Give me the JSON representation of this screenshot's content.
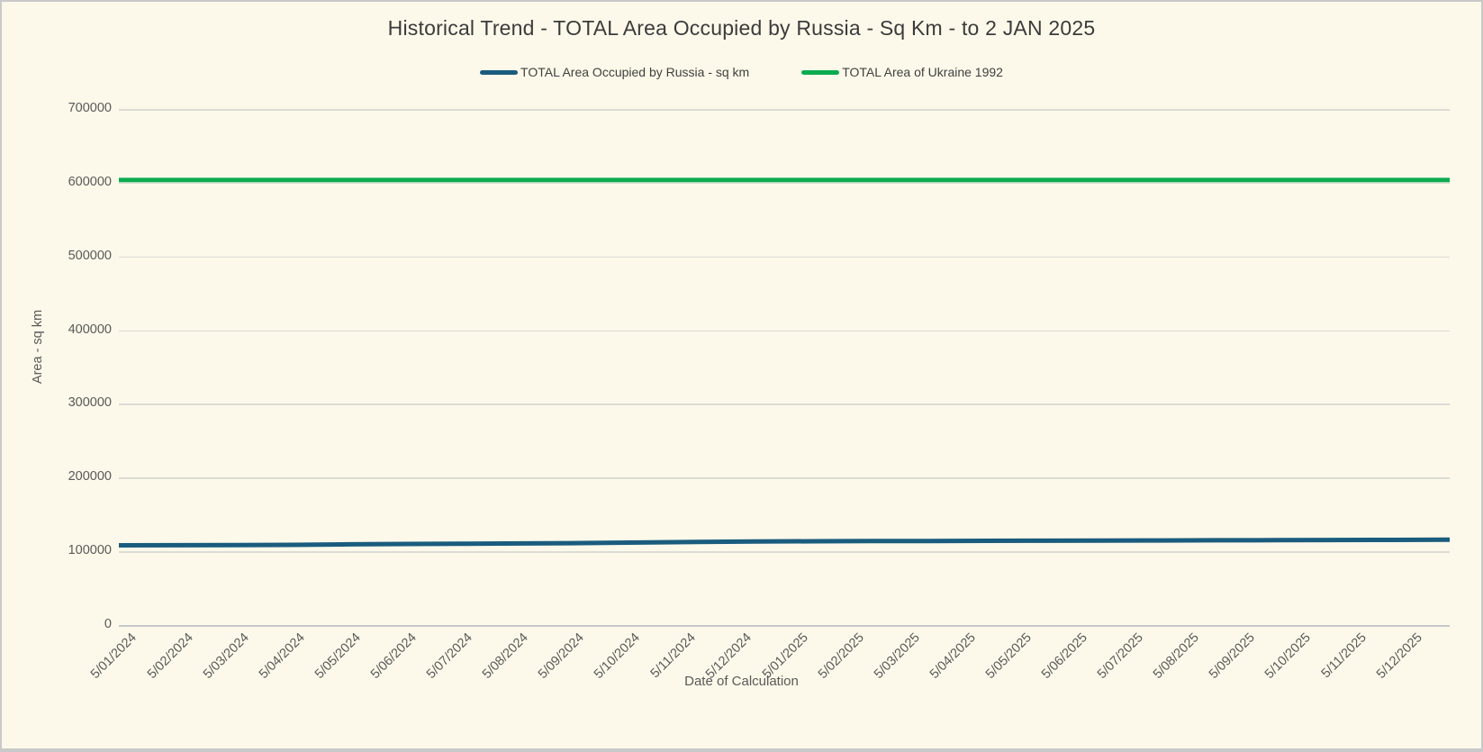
{
  "colors": {
    "background": "#FDF9EA",
    "grid": "#DBDCD5",
    "axis_line": "#C5C8CB",
    "axis_text": "#595959",
    "title_text": "#3B3B3B",
    "russia_line": "#1A5C7E",
    "ukraine_line": "#0BAB4F"
  },
  "chart_data": {
    "type": "line",
    "title": "Historical Trend - TOTAL Area Occupied by Russia - Sq Km - to 2 JAN 2025",
    "xlabel": "Date of Calculation",
    "ylabel": "Area - sq km",
    "ylim": [
      0,
      700000
    ],
    "y_ticks": [
      0,
      100000,
      200000,
      300000,
      400000,
      500000,
      600000,
      700000
    ],
    "grid": "horizontal",
    "legend_position": "top",
    "categories": [
      "5/01/2024",
      "5/02/2024",
      "5/03/2024",
      "5/04/2024",
      "5/05/2024",
      "5/06/2024",
      "5/07/2024",
      "5/08/2024",
      "5/09/2024",
      "5/10/2024",
      "5/11/2024",
      "5/12/2024",
      "5/01/2025",
      "5/02/2025",
      "5/03/2025",
      "5/04/2025",
      "5/05/2025",
      "5/06/2025",
      "5/07/2025",
      "5/08/2025",
      "5/09/2025",
      "5/10/2025",
      "5/11/2025",
      "5/12/2025"
    ],
    "series": [
      {
        "name": "TOTAL Area Occupied by Russia - sq km",
        "color": "#1A5C7E",
        "values": [
          108100,
          108200,
          108400,
          108700,
          109400,
          109900,
          110300,
          110700,
          111200,
          111900,
          112600,
          113200,
          113600,
          113800,
          114000,
          114200,
          114400,
          114500,
          114700,
          114900,
          115100,
          115300,
          115500,
          115700
        ]
      },
      {
        "name": "TOTAL Area of Ukraine 1992",
        "color": "#0BAB4F",
        "values": [
          603628,
          603628,
          603628,
          603628,
          603628,
          603628,
          603628,
          603628,
          603628,
          603628,
          603628,
          603628,
          603628,
          603628,
          603628,
          603628,
          603628,
          603628,
          603628,
          603628,
          603628,
          603628,
          603628,
          603628
        ]
      }
    ]
  }
}
